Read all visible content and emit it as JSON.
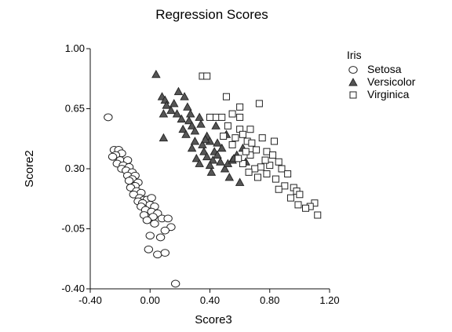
{
  "chart_data": {
    "type": "scatter",
    "title": "Regression Scores",
    "xlabel": "Score3",
    "ylabel": "Score2",
    "xlim": [
      -0.4,
      1.2
    ],
    "ylim": [
      -0.4,
      1.0
    ],
    "x_ticks": [
      -0.4,
      0.0,
      0.4,
      0.8,
      1.2
    ],
    "x_tick_labels": [
      "-0.40",
      "0.00",
      "0.40",
      "0.80",
      "1.20"
    ],
    "y_ticks": [
      -0.4,
      -0.05,
      0.3,
      0.65,
      1.0
    ],
    "y_tick_labels": [
      "-0.40",
      "-0.05",
      "0.30",
      "0.65",
      "1.00"
    ],
    "grid": false,
    "legend": {
      "title": "Iris",
      "placement": "right",
      "entries": [
        "Setosa",
        "Versicolor",
        "Virginica"
      ]
    },
    "series": [
      {
        "name": "Setosa",
        "marker": "circle",
        "points": [
          [
            -0.28,
            0.6
          ],
          [
            -0.24,
            0.41
          ],
          [
            -0.21,
            0.41
          ],
          [
            -0.19,
            0.39
          ],
          [
            -0.23,
            0.38
          ],
          [
            -0.25,
            0.37
          ],
          [
            -0.2,
            0.35
          ],
          [
            -0.15,
            0.35
          ],
          [
            -0.22,
            0.33
          ],
          [
            -0.18,
            0.32
          ],
          [
            -0.14,
            0.31
          ],
          [
            -0.19,
            0.3
          ],
          [
            -0.16,
            0.29
          ],
          [
            -0.12,
            0.28
          ],
          [
            -0.15,
            0.26
          ],
          [
            -0.1,
            0.26
          ],
          [
            -0.12,
            0.24
          ],
          [
            -0.14,
            0.23
          ],
          [
            -0.08,
            0.22
          ],
          [
            -0.1,
            0.2
          ],
          [
            -0.13,
            0.19
          ],
          [
            -0.09,
            0.17
          ],
          [
            -0.06,
            0.16
          ],
          [
            -0.11,
            0.15
          ],
          [
            -0.07,
            0.13
          ],
          [
            -0.04,
            0.12
          ],
          [
            -0.08,
            0.11
          ],
          [
            -0.02,
            0.12
          ],
          [
            0.01,
            0.13
          ],
          [
            -0.05,
            0.1
          ],
          [
            0.0,
            0.09
          ],
          [
            -0.06,
            0.08
          ],
          [
            0.03,
            0.08
          ],
          [
            -0.03,
            0.06
          ],
          [
            0.01,
            0.05
          ],
          [
            -0.04,
            0.03
          ],
          [
            0.05,
            0.04
          ],
          [
            0.02,
            0.02
          ],
          [
            0.08,
            0.01
          ],
          [
            0.12,
            0.01
          ],
          [
            -0.02,
            0.0
          ],
          [
            0.03,
            -0.02
          ],
          [
            0.14,
            -0.04
          ],
          [
            0.1,
            -0.06
          ],
          [
            0.0,
            -0.09
          ],
          [
            0.07,
            -0.1
          ],
          [
            -0.01,
            -0.17
          ],
          [
            0.05,
            -0.2
          ],
          [
            0.1,
            -0.19
          ],
          [
            0.17,
            -0.37
          ]
        ]
      },
      {
        "name": "Versicolor",
        "marker": "triangle",
        "points": [
          [
            0.04,
            0.85
          ],
          [
            0.08,
            0.72
          ],
          [
            0.1,
            0.7
          ],
          [
            0.19,
            0.75
          ],
          [
            0.11,
            0.67
          ],
          [
            0.14,
            0.64
          ],
          [
            0.16,
            0.68
          ],
          [
            0.09,
            0.62
          ],
          [
            0.23,
            0.72
          ],
          [
            0.25,
            0.66
          ],
          [
            0.18,
            0.62
          ],
          [
            0.21,
            0.59
          ],
          [
            0.26,
            0.58
          ],
          [
            0.28,
            0.55
          ],
          [
            0.22,
            0.53
          ],
          [
            0.3,
            0.52
          ],
          [
            0.24,
            0.5
          ],
          [
            0.34,
            0.56
          ],
          [
            0.38,
            0.49
          ],
          [
            0.35,
            0.44
          ],
          [
            0.4,
            0.46
          ],
          [
            0.43,
            0.4
          ],
          [
            0.36,
            0.4
          ],
          [
            0.45,
            0.38
          ],
          [
            0.38,
            0.37
          ],
          [
            0.31,
            0.36
          ],
          [
            0.42,
            0.35
          ],
          [
            0.47,
            0.34
          ],
          [
            0.33,
            0.33
          ],
          [
            0.4,
            0.32
          ],
          [
            0.5,
            0.3
          ],
          [
            0.52,
            0.33
          ],
          [
            0.55,
            0.35
          ],
          [
            0.58,
            0.38
          ],
          [
            0.62,
            0.42
          ],
          [
            0.45,
            0.45
          ],
          [
            0.28,
            0.42
          ],
          [
            0.53,
            0.25
          ],
          [
            0.6,
            0.22
          ],
          [
            0.09,
            0.48
          ],
          [
            0.37,
            0.47
          ],
          [
            0.3,
            0.46
          ],
          [
            0.48,
            0.42
          ],
          [
            0.41,
            0.28
          ],
          [
            0.56,
            0.36
          ],
          [
            0.64,
            0.34
          ],
          [
            0.33,
            0.6
          ],
          [
            0.44,
            0.55
          ],
          [
            0.51,
            0.5
          ],
          [
            0.27,
            0.62
          ]
        ]
      },
      {
        "name": "Virginica",
        "marker": "square",
        "points": [
          [
            0.35,
            0.84
          ],
          [
            0.38,
            0.84
          ],
          [
            0.51,
            0.72
          ],
          [
            0.44,
            0.6
          ],
          [
            0.4,
            0.6
          ],
          [
            0.48,
            0.6
          ],
          [
            0.6,
            0.66
          ],
          [
            0.73,
            0.68
          ],
          [
            0.55,
            0.62
          ],
          [
            0.52,
            0.55
          ],
          [
            0.6,
            0.53
          ],
          [
            0.62,
            0.5
          ],
          [
            0.57,
            0.48
          ],
          [
            0.49,
            0.49
          ],
          [
            0.65,
            0.46
          ],
          [
            0.68,
            0.45
          ],
          [
            0.75,
            0.48
          ],
          [
            0.78,
            0.4
          ],
          [
            0.82,
            0.38
          ],
          [
            0.86,
            0.34
          ],
          [
            0.8,
            0.32
          ],
          [
            0.74,
            0.31
          ],
          [
            0.7,
            0.3
          ],
          [
            0.62,
            0.33
          ],
          [
            0.59,
            0.36
          ],
          [
            0.67,
            0.38
          ],
          [
            0.88,
            0.3
          ],
          [
            0.92,
            0.27
          ],
          [
            0.78,
            0.27
          ],
          [
            0.84,
            0.24
          ],
          [
            0.96,
            0.19
          ],
          [
            0.98,
            0.17
          ],
          [
            1.0,
            0.15
          ],
          [
            0.9,
            0.2
          ],
          [
            0.86,
            0.18
          ],
          [
            0.94,
            0.13
          ],
          [
            0.99,
            0.09
          ],
          [
            1.1,
            0.1
          ],
          [
            1.07,
            0.08
          ],
          [
            1.04,
            0.07
          ],
          [
            1.12,
            0.03
          ],
          [
            0.67,
            0.53
          ],
          [
            0.71,
            0.41
          ],
          [
            0.64,
            0.4
          ],
          [
            0.55,
            0.44
          ],
          [
            0.77,
            0.35
          ],
          [
            0.83,
            0.46
          ],
          [
            0.72,
            0.25
          ],
          [
            0.66,
            0.28
          ],
          [
            0.6,
            0.6
          ]
        ]
      }
    ]
  }
}
